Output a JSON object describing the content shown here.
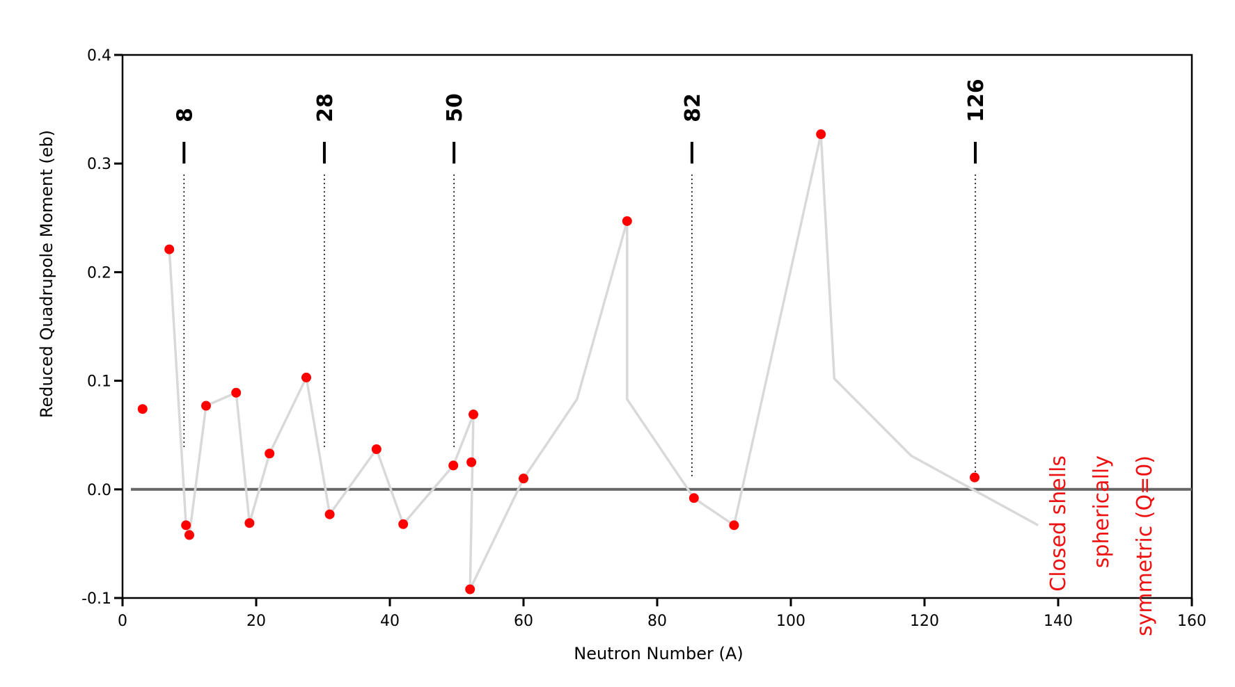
{
  "chart_data": {
    "type": "scatter",
    "xlabel": "Neutron Number (A)",
    "ylabel": "Reduced Quadrupole Moment (eb)",
    "xlim": [
      0,
      160
    ],
    "ylim": [
      -0.1,
      0.4
    ],
    "x_ticks": [
      "0",
      "20",
      "40",
      "60",
      "80",
      "100",
      "120",
      "140",
      "160"
    ],
    "x_tick_values": [
      0,
      20,
      40,
      60,
      80,
      100,
      120,
      140,
      160
    ],
    "y_ticks": [
      "-0.1",
      "0.0",
      "0.1",
      "0.2",
      "0.3",
      "0.4"
    ],
    "y_tick_values": [
      -0.1,
      0.0,
      0.1,
      0.2,
      0.3,
      0.4
    ],
    "grid": false,
    "series": [
      {
        "color": "#ff0000",
        "marker": "circle",
        "x": [
          3,
          7,
          9.5,
          10,
          12.5,
          17,
          19,
          22,
          27.5,
          31,
          38,
          42,
          49.5,
          52,
          52.2,
          52.5,
          60,
          75.5,
          85.5,
          91.5,
          104.5,
          127.5
        ],
        "y": [
          0.074,
          0.221,
          -0.033,
          -0.042,
          0.077,
          0.089,
          -0.031,
          0.033,
          0.103,
          -0.023,
          0.037,
          -0.032,
          0.022,
          -0.092,
          0.025,
          0.069,
          0.01,
          0.247,
          -0.008,
          -0.033,
          0.327,
          0.011
        ]
      }
    ],
    "trend_line": {
      "color": "#d9d9d9",
      "x": [
        7,
        9.5,
        10,
        12.5,
        17,
        19,
        22,
        27.5,
        31,
        38,
        42,
        49.5,
        52.5,
        52,
        60,
        68,
        75.5,
        75.5,
        85.5,
        91.5,
        104.5,
        106.5,
        118,
        137
      ],
      "y": [
        0.221,
        -0.033,
        -0.042,
        0.077,
        0.089,
        -0.031,
        0.033,
        0.103,
        -0.023,
        0.037,
        -0.032,
        0.022,
        0.069,
        -0.092,
        0.01,
        0.083,
        0.247,
        0.083,
        -0.008,
        -0.033,
        0.327,
        0.102,
        0.031,
        -0.033
      ]
    },
    "zero_line": {
      "y": 0.0,
      "color": "#666666"
    },
    "magic_numbers": [
      {
        "label": "8",
        "x": 9.2
      },
      {
        "label": "28",
        "x": 30.2
      },
      {
        "label": "50",
        "x": 49.6
      },
      {
        "label": "82",
        "x": 85.2
      },
      {
        "label": "126",
        "x": 127.6
      }
    ],
    "annotation": {
      "lines": [
        "Closed shells",
        "spherically",
        "symmetric (Q=0)"
      ],
      "color": "#ee1111"
    }
  }
}
